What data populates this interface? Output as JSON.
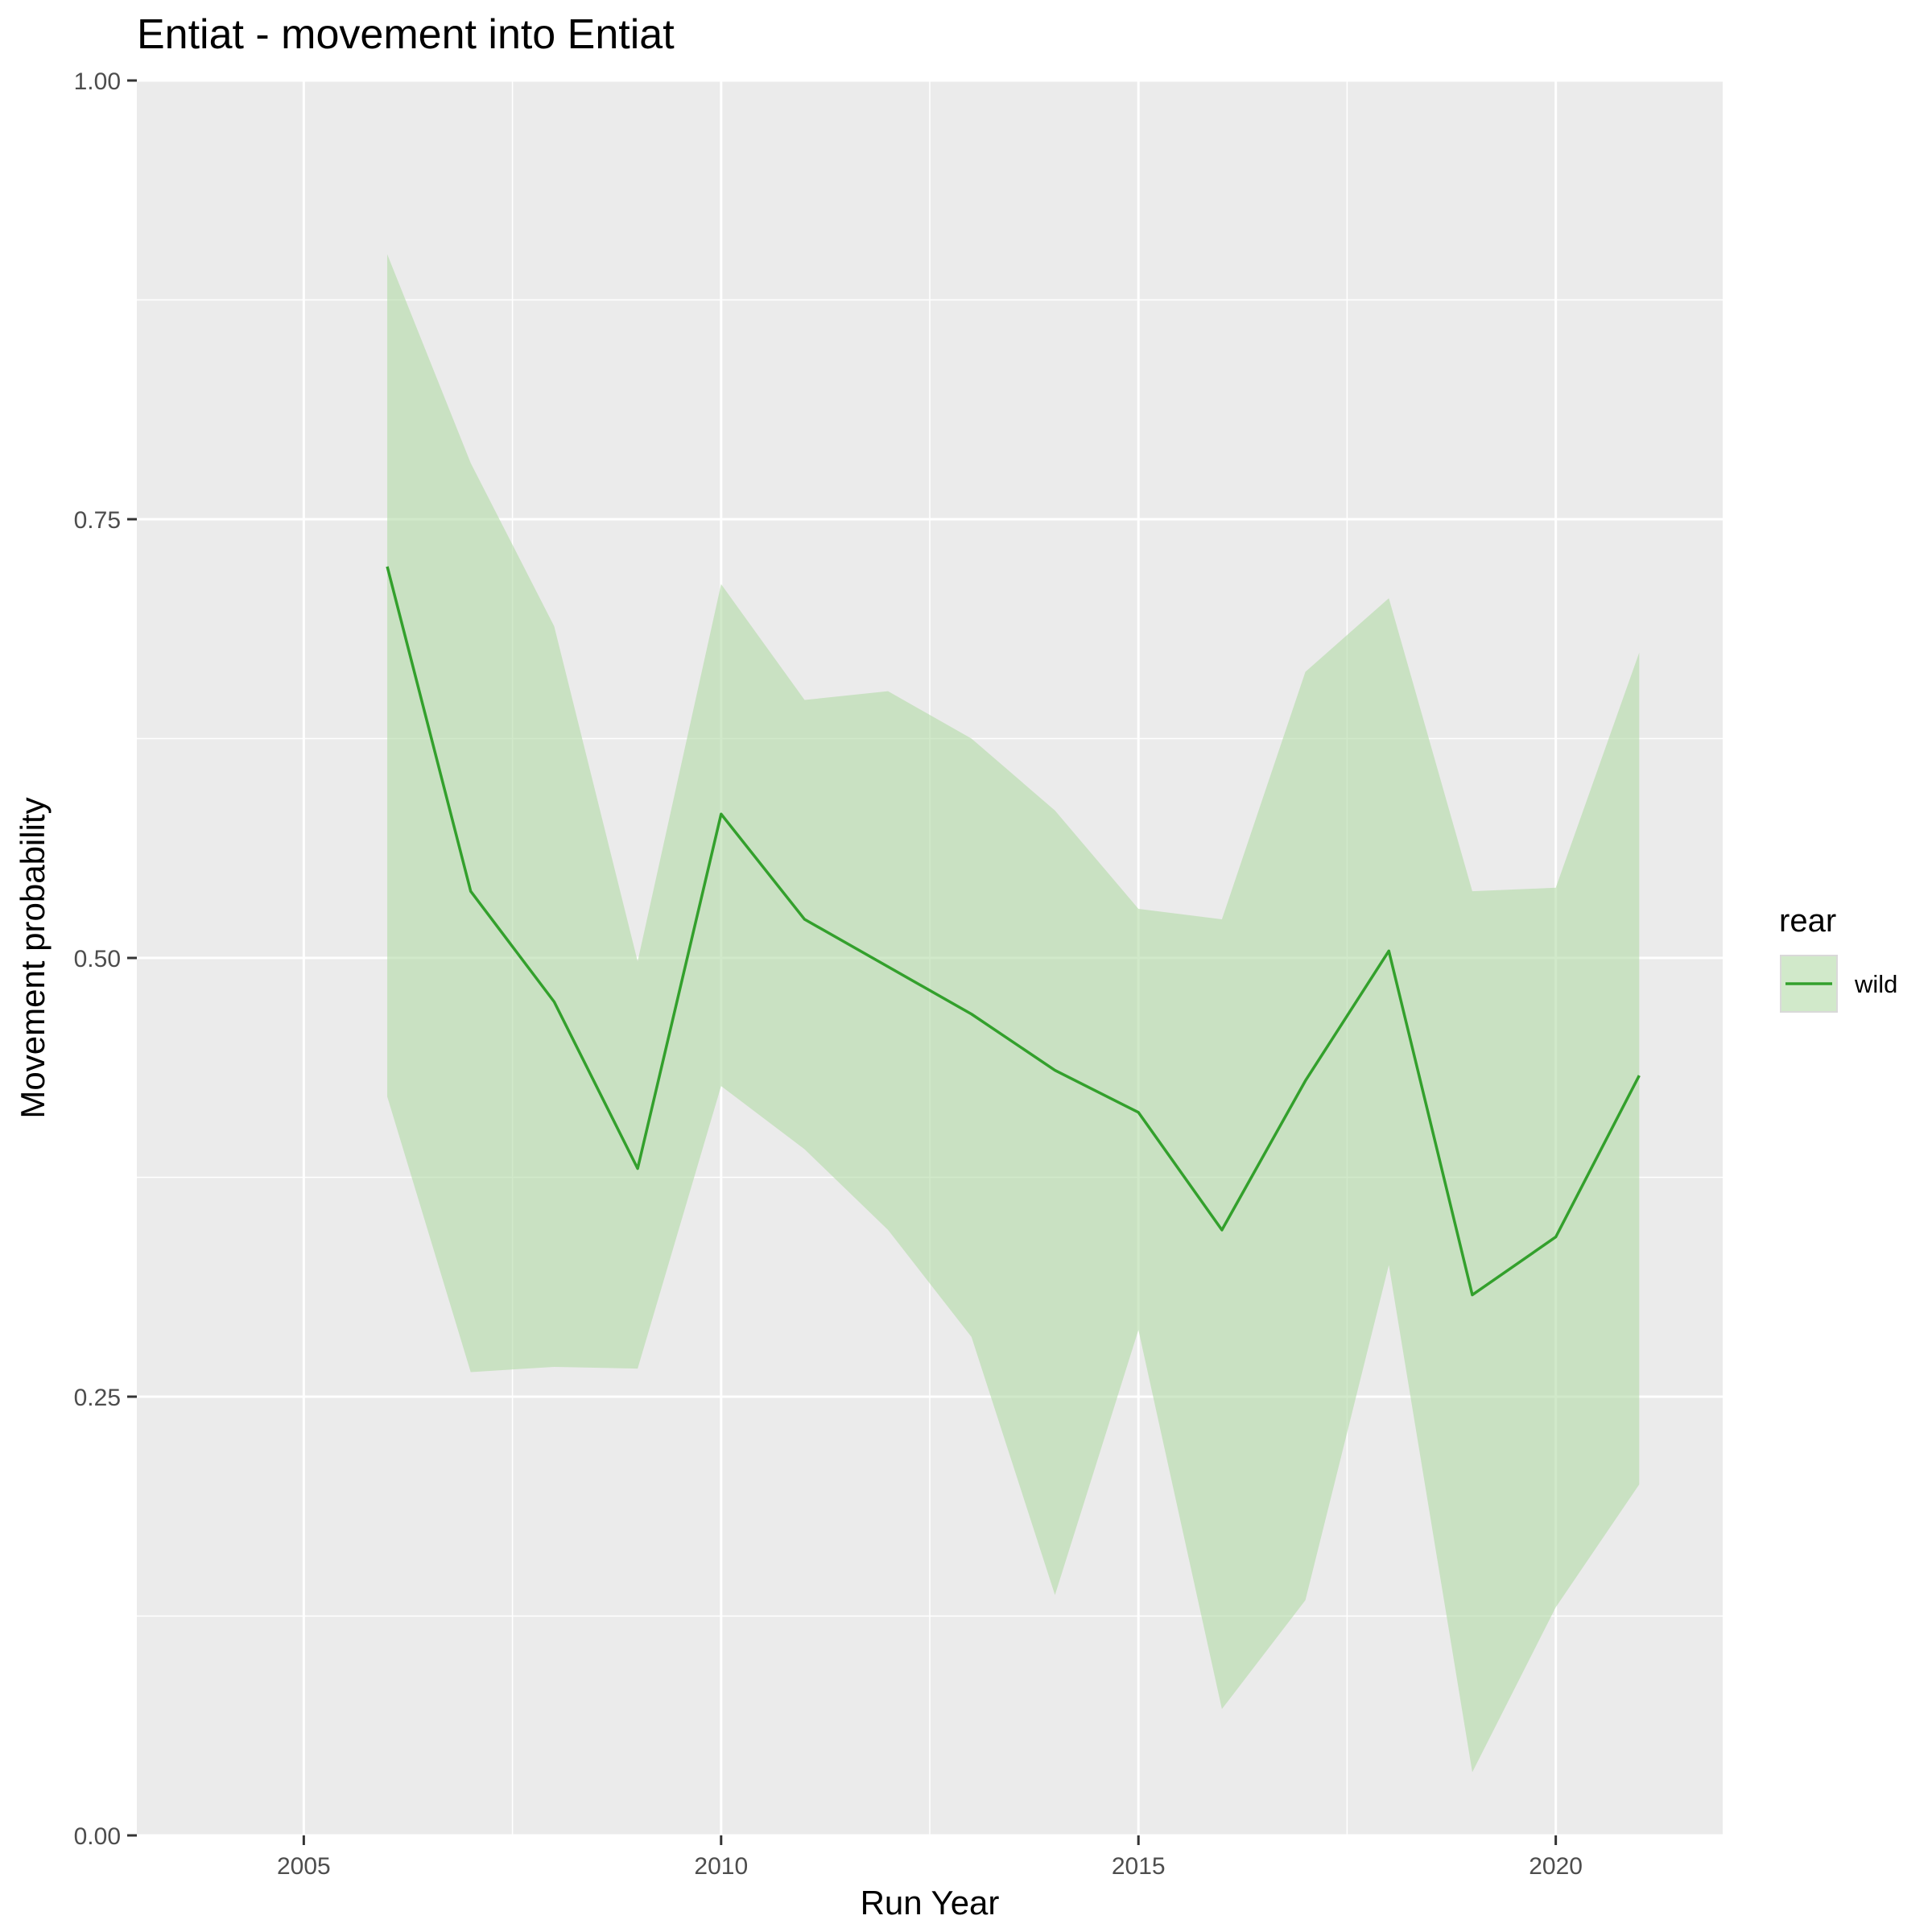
{
  "chart_data": {
    "type": "line",
    "title": "Entiat - movement into Entiat",
    "xlabel": "Run Year",
    "ylabel": "Movement probability",
    "xlim": [
      2003,
      2022
    ],
    "ylim": [
      0,
      1
    ],
    "x_ticks": [
      2005,
      2010,
      2015,
      2020
    ],
    "x_tick_labels": [
      "2005",
      "2010",
      "2015",
      "2020"
    ],
    "y_ticks": [
      0,
      0.25,
      0.5,
      0.75,
      1
    ],
    "y_tick_labels": [
      "0.00",
      "0.25",
      "0.50",
      "0.75",
      "1.00"
    ],
    "grid": true,
    "legend": {
      "title": "rear",
      "position": "right",
      "entries": [
        "wild"
      ]
    },
    "colors": {
      "panel": "#ebebeb",
      "grid": "#ffffff",
      "line": "#33a02c",
      "ribbon": "#b2dba6"
    },
    "series": [
      {
        "name": "wild",
        "x": [
          2006,
          2007,
          2008,
          2009,
          2010,
          2011,
          2012,
          2013,
          2014,
          2015,
          2016,
          2017,
          2018,
          2019,
          2020,
          2021
        ],
        "y": [
          0.723,
          0.538,
          0.475,
          0.38,
          0.582,
          0.522,
          0.495,
          0.468,
          0.436,
          0.412,
          0.345,
          0.43,
          0.504,
          0.308,
          0.341,
          0.433
        ],
        "lower": [
          0.421,
          0.264,
          0.267,
          0.266,
          0.427,
          0.391,
          0.345,
          0.284,
          0.137,
          0.288,
          0.072,
          0.134,
          0.325,
          0.036,
          0.13,
          0.2
        ],
        "upper": [
          0.901,
          0.782,
          0.689,
          0.498,
          0.713,
          0.647,
          0.652,
          0.625,
          0.584,
          0.528,
          0.522,
          0.663,
          0.705,
          0.538,
          0.54,
          0.674
        ]
      }
    ]
  }
}
